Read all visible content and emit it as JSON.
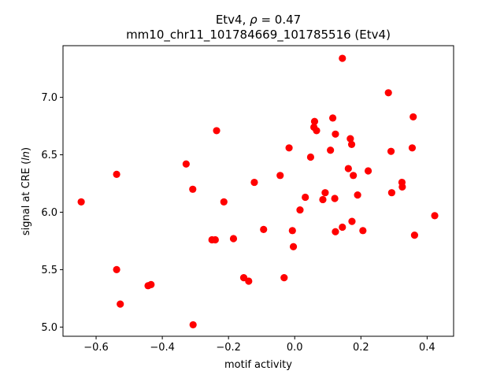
{
  "chart_data": {
    "type": "scatter",
    "title_line1_prefix": "Etv4, ",
    "title_line1_rho_symbol": "ρ",
    "title_line1_rho_value": " = 0.47",
    "title_line2": "mm10_chr11_101784669_101785516 (Etv4)",
    "xlabel": "motif activity",
    "ylabel_prefix": "signal at CRE (",
    "ylabel_italic": "ln",
    "ylabel_suffix": ")",
    "xlim": [
      -0.7,
      0.48
    ],
    "ylim": [
      4.92,
      7.45
    ],
    "xticks": [
      -0.6,
      -0.4,
      -0.2,
      0.0,
      0.2,
      0.4
    ],
    "xtick_labels": [
      "−0.6",
      "−0.4",
      "−0.2",
      "0.0",
      "0.2",
      "0.4"
    ],
    "yticks": [
      5.0,
      5.5,
      6.0,
      6.5,
      7.0
    ],
    "ytick_labels": [
      "5.0",
      "5.5",
      "6.0",
      "6.5",
      "7.0"
    ],
    "marker_color": "#ff0000",
    "grid": false,
    "points": [
      {
        "x": -0.645,
        "y": 6.09
      },
      {
        "x": -0.538,
        "y": 6.33
      },
      {
        "x": -0.538,
        "y": 5.5
      },
      {
        "x": -0.527,
        "y": 5.2
      },
      {
        "x": -0.443,
        "y": 5.36
      },
      {
        "x": -0.434,
        "y": 5.37
      },
      {
        "x": -0.328,
        "y": 6.42
      },
      {
        "x": -0.308,
        "y": 6.2
      },
      {
        "x": -0.307,
        "y": 5.02
      },
      {
        "x": -0.25,
        "y": 5.76
      },
      {
        "x": -0.24,
        "y": 5.76
      },
      {
        "x": -0.236,
        "y": 6.71
      },
      {
        "x": -0.214,
        "y": 6.09
      },
      {
        "x": -0.185,
        "y": 5.77
      },
      {
        "x": -0.154,
        "y": 5.43
      },
      {
        "x": -0.139,
        "y": 5.4
      },
      {
        "x": -0.122,
        "y": 6.26
      },
      {
        "x": -0.094,
        "y": 5.85
      },
      {
        "x": -0.044,
        "y": 6.32
      },
      {
        "x": -0.032,
        "y": 5.43
      },
      {
        "x": -0.017,
        "y": 6.56
      },
      {
        "x": -0.007,
        "y": 5.84
      },
      {
        "x": -0.004,
        "y": 5.7
      },
      {
        "x": 0.016,
        "y": 6.02
      },
      {
        "x": 0.032,
        "y": 6.13
      },
      {
        "x": 0.048,
        "y": 6.48
      },
      {
        "x": 0.058,
        "y": 6.74
      },
      {
        "x": 0.06,
        "y": 6.79
      },
      {
        "x": 0.066,
        "y": 6.71
      },
      {
        "x": 0.085,
        "y": 6.11
      },
      {
        "x": 0.092,
        "y": 6.17
      },
      {
        "x": 0.108,
        "y": 6.54
      },
      {
        "x": 0.115,
        "y": 6.82
      },
      {
        "x": 0.121,
        "y": 6.12
      },
      {
        "x": 0.123,
        "y": 6.68
      },
      {
        "x": 0.123,
        "y": 5.83
      },
      {
        "x": 0.144,
        "y": 5.87
      },
      {
        "x": 0.144,
        "y": 7.34
      },
      {
        "x": 0.162,
        "y": 6.38
      },
      {
        "x": 0.168,
        "y": 6.64
      },
      {
        "x": 0.172,
        "y": 6.59
      },
      {
        "x": 0.173,
        "y": 5.92
      },
      {
        "x": 0.177,
        "y": 6.32
      },
      {
        "x": 0.19,
        "y": 6.15
      },
      {
        "x": 0.206,
        "y": 5.84
      },
      {
        "x": 0.222,
        "y": 6.36
      },
      {
        "x": 0.283,
        "y": 7.04
      },
      {
        "x": 0.291,
        "y": 6.53
      },
      {
        "x": 0.293,
        "y": 6.17
      },
      {
        "x": 0.324,
        "y": 6.26
      },
      {
        "x": 0.325,
        "y": 6.22
      },
      {
        "x": 0.355,
        "y": 6.56
      },
      {
        "x": 0.358,
        "y": 6.83
      },
      {
        "x": 0.362,
        "y": 5.8
      },
      {
        "x": 0.423,
        "y": 5.97
      }
    ]
  }
}
